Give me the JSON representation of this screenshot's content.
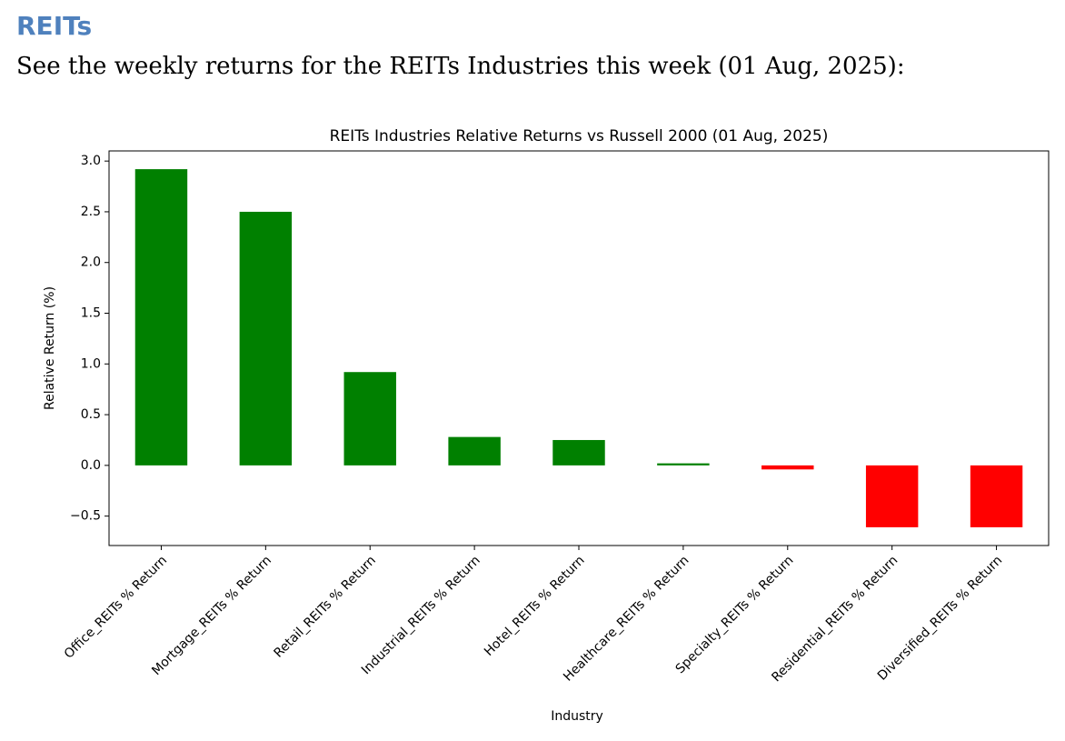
{
  "header": {
    "title": "REITs",
    "subtitle": "See the weekly returns for the REITs Industries this week (01 Aug, 2025):"
  },
  "chart_data": {
    "type": "bar",
    "title": "REITs Industries Relative Returns vs Russell 2000 (01 Aug, 2025)",
    "x_label": "Industry",
    "y_label": "Relative Return (%)",
    "categories": [
      "Office_REITs % Return",
      "Mortgage_REITs % Return",
      "Retail_REITs % Return",
      "Industrial_REITs % Return",
      "Hotel_REITs % Return",
      "Healthcare_REITs % Return",
      "Specialty_REITs % Return",
      "Residential_REITs % Return",
      "Diversified_REITs % Return"
    ],
    "values": [
      2.92,
      2.5,
      0.92,
      0.28,
      0.25,
      0.02,
      -0.04,
      -0.61,
      -0.61
    ],
    "colors": [
      "#008000",
      "#008000",
      "#008000",
      "#008000",
      "#008000",
      "#008000",
      "#ff0000",
      "#ff0000",
      "#ff0000"
    ],
    "ylim": [
      -0.79,
      3.1
    ],
    "yticks": [
      {
        "value": -0.5,
        "label": "−0.5"
      },
      {
        "value": 0,
        "label": "0.0"
      },
      0.5,
      {
        "value": 1,
        "label": "1.0"
      },
      1.5,
      {
        "value": 2,
        "label": "2.0"
      },
      2.5,
      {
        "value": 3,
        "label": "3.0"
      }
    ],
    "grid": false
  }
}
